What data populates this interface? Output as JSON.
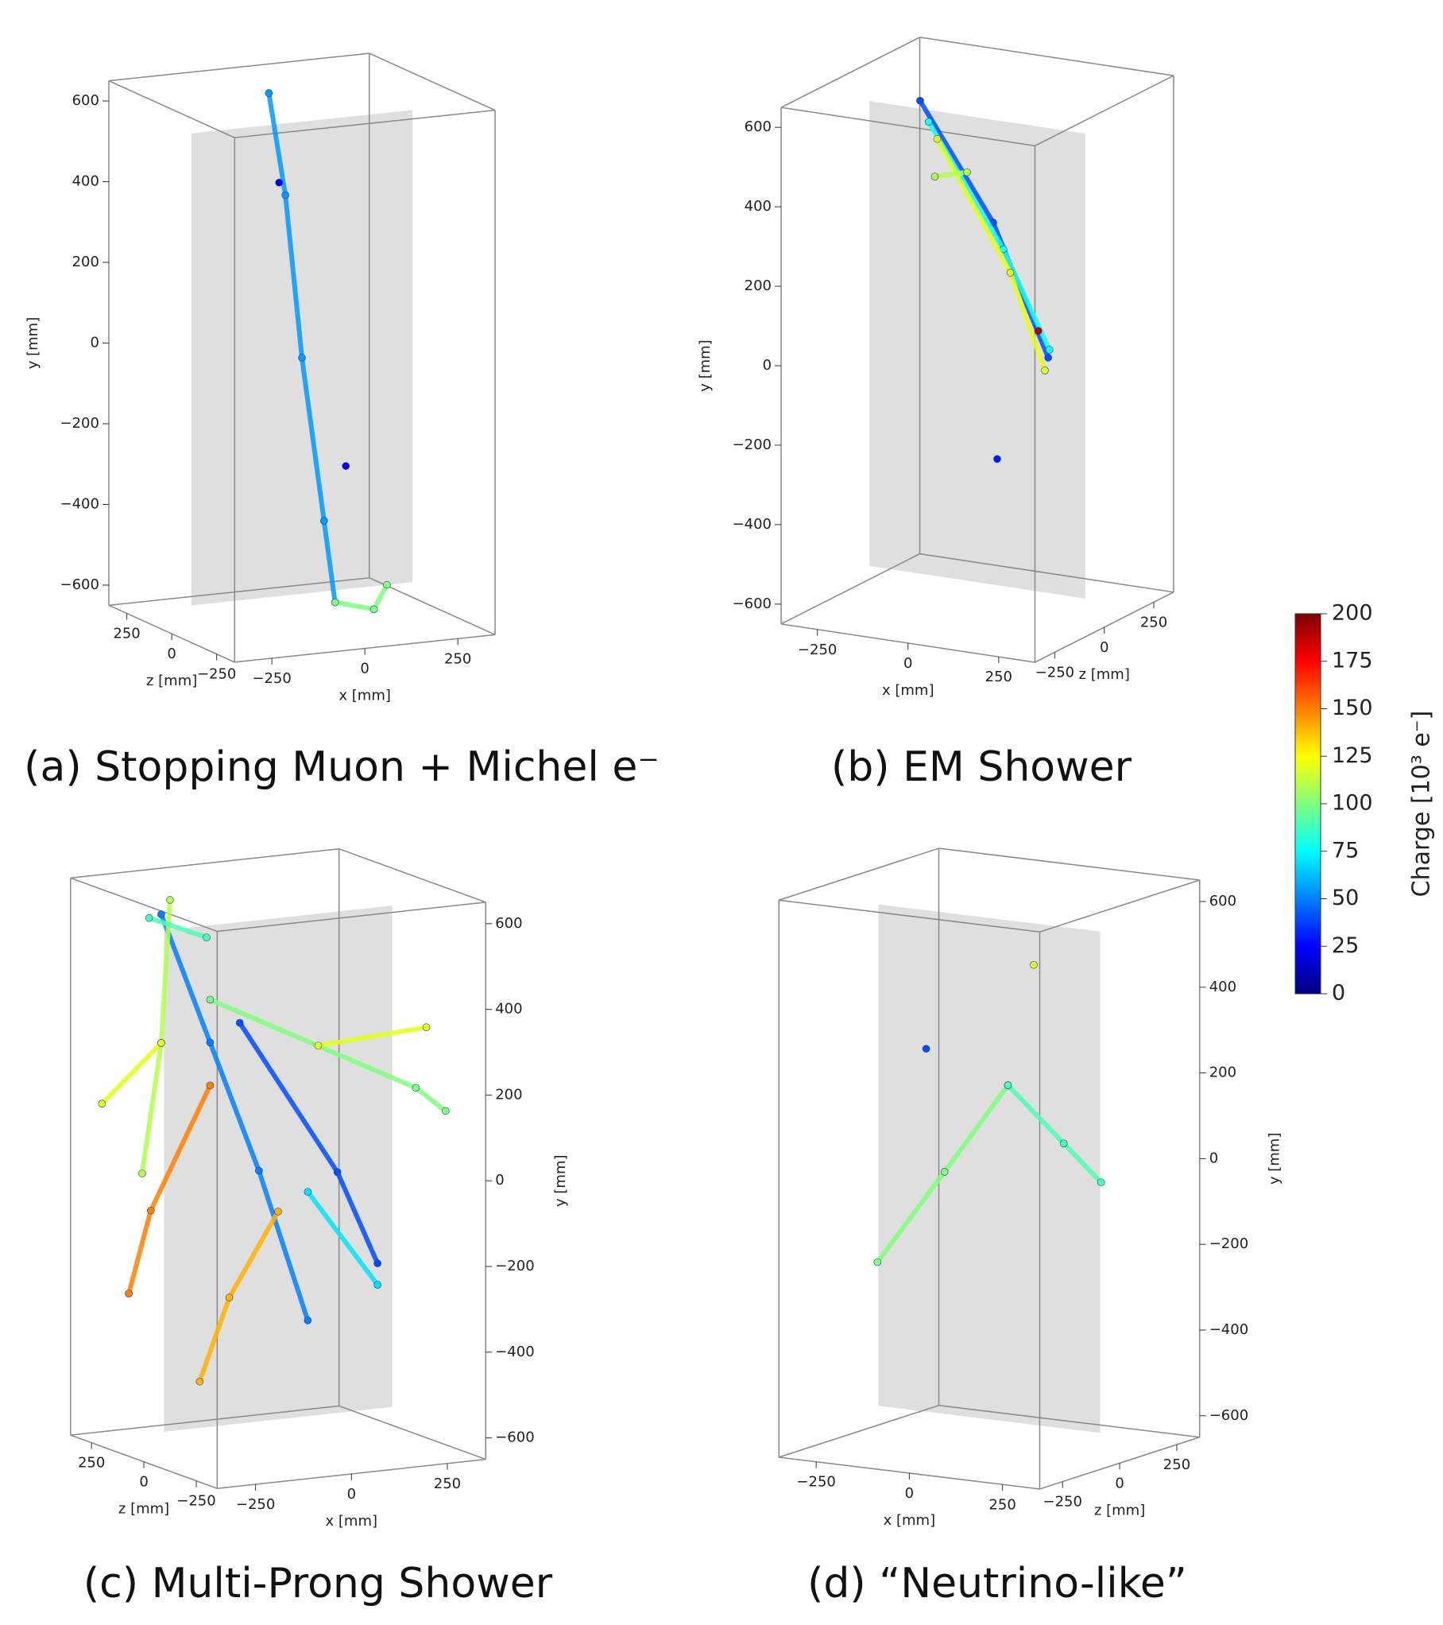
{
  "chart_data": [
    {
      "type": "scatter3d",
      "caption": "(a) Stopping Muon + Michel e⁻",
      "xlabel": "x [mm]",
      "ylabel": "y [mm]",
      "zlabel": "z [mm]",
      "xlim": [
        -350,
        350
      ],
      "ylim": [
        -650,
        650
      ],
      "zlim": [
        -350,
        350
      ],
      "xticks": [
        {
          "value": -250,
          "label": "−250"
        },
        0,
        250
      ],
      "yticks": [
        {
          "value": -600,
          "label": "−600"
        },
        {
          "value": -400,
          "label": "−400"
        },
        {
          "value": -200,
          "label": "−200"
        },
        0,
        200,
        400,
        600
      ],
      "zticks": [
        {
          "value": -250,
          "label": "−250"
        },
        0,
        250
      ],
      "tracks": [
        {
          "points": [
            [
              -60,
              650,
              60
            ],
            [
              -30,
              400,
              30
            ],
            [
              0,
              0,
              0
            ],
            [
              40,
              -400,
              -40
            ],
            [
              60,
              -600,
              -60
            ]
          ],
          "charge": 55
        },
        {
          "points": [
            [
              60,
              -600,
              -60
            ],
            [
              150,
              -620,
              -90
            ],
            [
              180,
              -560,
              -100
            ]
          ],
          "charge": 100
        },
        {
          "points": [
            [
              -100,
              460,
              -80
            ]
          ],
          "charge": 20
        },
        {
          "points": [
            [
              60,
              -250,
              -120
            ]
          ],
          "charge": 25
        }
      ]
    },
    {
      "type": "scatter3d",
      "caption": "(b) EM Shower",
      "xlabel": "x [mm]",
      "ylabel": "y [mm]",
      "zlabel": "z [mm]",
      "xlim": [
        -350,
        350
      ],
      "ylim": [
        -650,
        650
      ],
      "zlim": [
        -350,
        350
      ],
      "xticks": [
        {
          "value": -250,
          "label": "−250"
        },
        0,
        250
      ],
      "yticks": [
        {
          "value": -600,
          "label": "−600"
        },
        {
          "value": -400,
          "label": "−400"
        },
        {
          "value": -200,
          "label": "−200"
        },
        0,
        200,
        400,
        600
      ],
      "zticks": [
        {
          "value": -250,
          "label": "−250"
        },
        0,
        250
      ],
      "tracks": [
        {
          "points": [
            [
              -300,
              520,
              260
            ],
            [
              0,
              300,
              80
            ],
            [
              250,
              40,
              -100
            ]
          ],
          "charge": 40
        },
        {
          "points": [
            [
              -260,
              480,
              230
            ],
            [
              50,
              250,
              40
            ],
            [
              270,
              70,
              -130
            ]
          ],
          "charge": 80
        },
        {
          "points": [
            [
              -220,
              450,
              200
            ],
            [
              80,
              200,
              20
            ],
            [
              230,
              0,
              -80
            ]
          ],
          "charge": 120
        },
        {
          "points": [
            [
              -50,
              430,
              40
            ],
            [
              -150,
              400,
              60
            ]
          ],
          "charge": 110
        },
        {
          "points": [
            [
              250,
              120,
              -150
            ]
          ],
          "charge": 190
        },
        {
          "points": [
            [
              0,
              -300,
              100
            ]
          ],
          "charge": 30
        }
      ]
    },
    {
      "type": "scatter3d",
      "caption": "(c) Multi-Prong Shower",
      "xlabel": "x [mm]",
      "ylabel": "y [mm]",
      "zlabel": "z [mm]",
      "xlim": [
        -350,
        350
      ],
      "ylim": [
        -650,
        650
      ],
      "zlim": [
        -350,
        350
      ],
      "xticks": [
        {
          "value": -250,
          "label": "−250"
        },
        0,
        250
      ],
      "yticks": [
        {
          "value": -600,
          "label": "−600"
        },
        {
          "value": -400,
          "label": "−400"
        },
        {
          "value": -200,
          "label": "−200"
        },
        0,
        200,
        400,
        600
      ],
      "zticks": [
        {
          "value": -250,
          "label": "−250"
        },
        0,
        250
      ],
      "tracks": [
        {
          "points": [
            [
              -250,
              600,
              100
            ],
            [
              -150,
              300,
              50
            ],
            [
              -50,
              0,
              0
            ],
            [
              50,
              -350,
              -50
            ]
          ],
          "charge": 50
        },
        {
          "points": [
            [
              -200,
              620,
              150
            ],
            [
              -250,
              300,
              100
            ],
            [
              -300,
              0,
              100
            ]
          ],
          "charge": 110
        },
        {
          "points": [
            [
              -150,
              400,
              50
            ],
            [
              250,
              200,
              -200
            ],
            [
              300,
              150,
              -250
            ]
          ],
          "charge": 100
        },
        {
          "points": [
            [
              -100,
              350,
              0
            ],
            [
              100,
              0,
              -100
            ],
            [
              150,
              -200,
              -200
            ]
          ],
          "charge": 40
        },
        {
          "points": [
            [
              -250,
              300,
              100
            ],
            [
              -350,
              150,
              200
            ]
          ],
          "charge": 120
        },
        {
          "points": [
            [
              0,
              -100,
              0
            ],
            [
              -100,
              -300,
              50
            ],
            [
              -150,
              -500,
              100
            ]
          ],
          "charge": 140
        },
        {
          "points": [
            [
              -50,
              500,
              250
            ],
            [
              -200,
              560,
              250
            ]
          ],
          "charge": 90
        },
        {
          "points": [
            [
              50,
              -50,
              -50
            ],
            [
              150,
              -250,
              -200
            ]
          ],
          "charge": 70
        },
        {
          "points": [
            [
              -150,
              200,
              50
            ],
            [
              -250,
              -100,
              150
            ],
            [
              -280,
              -300,
              200
            ]
          ],
          "charge": 150
        },
        {
          "points": [
            [
              50,
              300,
              -100
            ],
            [
              250,
              350,
              -250
            ]
          ],
          "charge": 120
        }
      ]
    },
    {
      "type": "scatter3d",
      "caption": "(d) “Neutrino-like”",
      "xlabel": "x [mm]",
      "ylabel": "y [mm]",
      "zlabel": "z [mm]",
      "xlim": [
        -350,
        350
      ],
      "ylim": [
        -650,
        650
      ],
      "zlim": [
        -350,
        350
      ],
      "xticks": [
        {
          "value": -250,
          "label": "−250"
        },
        0,
        250
      ],
      "yticks": [
        {
          "value": -600,
          "label": "−600"
        },
        {
          "value": -400,
          "label": "−400"
        },
        {
          "value": -200,
          "label": "−200"
        },
        0,
        200,
        400,
        600
      ],
      "zticks": [
        {
          "value": -250,
          "label": "−250"
        },
        0,
        250
      ],
      "tracks": [
        {
          "points": [
            [
              -300,
              -250,
              0
            ],
            [
              -120,
              -20,
              0
            ],
            [
              50,
              200,
              0
            ]
          ],
          "charge": 100
        },
        {
          "points": [
            [
              50,
              200,
              0
            ],
            [
              200,
              80,
              0
            ],
            [
              300,
              0,
              0
            ]
          ],
          "charge": 90
        },
        {
          "points": [
            [
              -200,
              250,
              50
            ]
          ],
          "charge": 40
        },
        {
          "points": [
            [
              150,
              500,
              -50
            ]
          ],
          "charge": 120
        }
      ]
    }
  ],
  "colorbar": {
    "label": "Charge [10³ e⁻]",
    "clim": [
      0,
      200
    ],
    "ticks": [
      0,
      25,
      50,
      75,
      100,
      125,
      150,
      175,
      200
    ]
  }
}
